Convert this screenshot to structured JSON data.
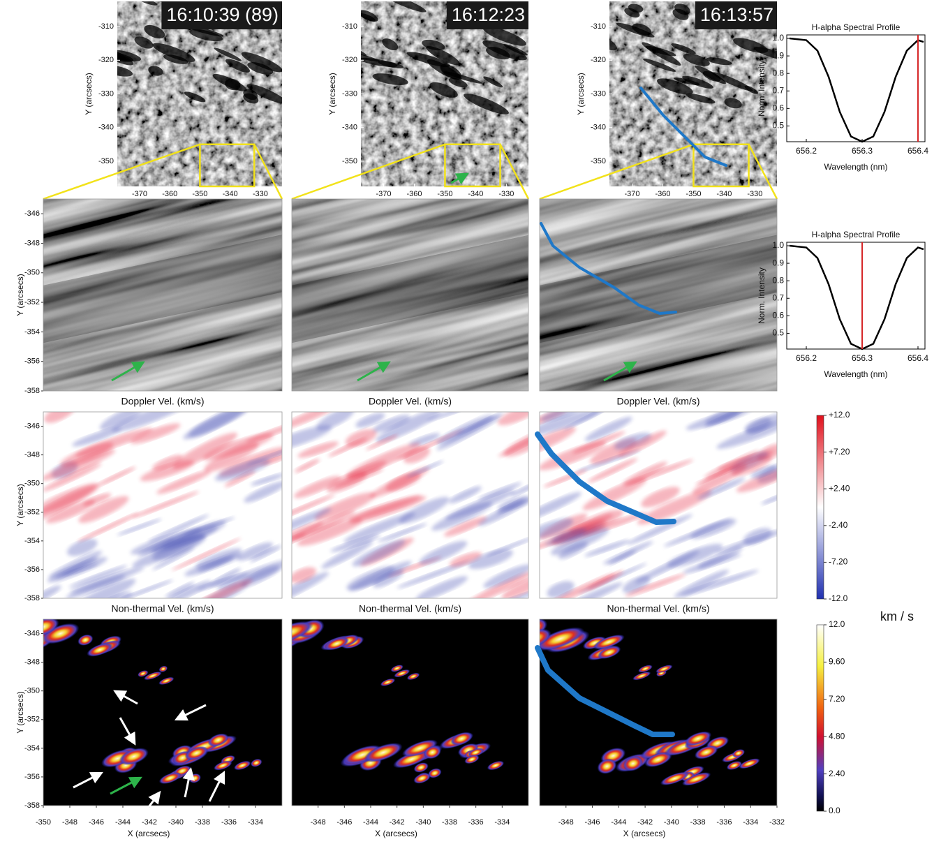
{
  "context_row": {
    "timestamps": [
      "16:10:39 (89)",
      "16:12:23",
      "16:13:57"
    ],
    "ylabel": "Y (arcsecs)",
    "xlim": [
      -377.4,
      -322.8
    ],
    "ylim": [
      -357.5,
      -302.5
    ],
    "xticks": [
      -370,
      -360,
      -350,
      -340,
      -330
    ],
    "yticks": [
      -310,
      -320,
      -330,
      -340,
      -350
    ]
  },
  "zoom_rows": {
    "ylabel": "Y (arcsecs)",
    "xlabel": "X (arcsecs)",
    "doppler_title": "Doppler Vel. (km/s)",
    "nonthermal_title": "Non-thermal Vel. (km/s)",
    "xlim": [
      -350,
      -332
    ],
    "ylim": [
      -358,
      -345
    ],
    "yticks": [
      -346,
      -348,
      -350,
      -352,
      -354,
      -356,
      -358
    ],
    "xticks": [
      [
        -350,
        -348,
        -346,
        -344,
        -342,
        -340,
        -338,
        -336,
        -334
      ],
      [
        -348,
        -346,
        -344,
        -342,
        -340,
        -338,
        -336,
        -334
      ],
      [
        -348,
        -346,
        -344,
        -342,
        -340,
        -338,
        -336,
        -334,
        -332
      ]
    ]
  },
  "doppler_colorbar": {
    "lim": [
      -12,
      12
    ],
    "ticks": [
      {
        "value": 12,
        "label": "+12.0"
      },
      {
        "value": 7.2,
        "label": "+7.20"
      },
      {
        "value": 2.4,
        "label": "+2.40"
      },
      {
        "value": -2.4,
        "label": "-2.40"
      },
      {
        "value": -7.2,
        "label": "-7.20"
      },
      {
        "value": -12,
        "label": "-12.0"
      }
    ]
  },
  "nonthermal_colorbar": {
    "lim": [
      0,
      12
    ],
    "ticks": [
      {
        "value": 12,
        "label": "12.0"
      },
      {
        "value": 9.6,
        "label": "9.60"
      },
      {
        "value": 7.2,
        "label": "7.20"
      },
      {
        "value": 4.8,
        "label": "4.80"
      },
      {
        "value": 2.4,
        "label": "2.40"
      },
      {
        "value": 0,
        "label": "0.0"
      }
    ],
    "unit": "km / s"
  },
  "chart_data": [
    {
      "type": "line",
      "title": "H-alpha Spectral Profile",
      "x_label": "Wavelength (nm)",
      "y_label": "Norm. Intensity",
      "x": [
        656.17,
        656.2,
        656.22,
        656.24,
        656.26,
        656.28,
        656.3,
        656.32,
        656.34,
        656.36,
        656.38,
        656.4,
        656.41
      ],
      "values": [
        1.0,
        0.99,
        0.93,
        0.78,
        0.58,
        0.44,
        0.41,
        0.44,
        0.58,
        0.78,
        0.93,
        0.99,
        0.98
      ],
      "color": "#000000",
      "marker_x": 656.4,
      "marker_color": "#d62728",
      "xlim": [
        656.165,
        656.4125
      ],
      "ylim": [
        0.41,
        1.02
      ],
      "xticks": [
        656.2,
        656.3,
        656.4
      ],
      "yticks": [
        0.5,
        0.6,
        0.7,
        0.8,
        0.9,
        {
          "value": 1,
          "label": "1.0"
        }
      ]
    },
    {
      "type": "line",
      "title": "H-alpha Spectral Profile",
      "x_label": "Wavelength (nm)",
      "y_label": "Norm. Intensity",
      "x": [
        656.17,
        656.2,
        656.22,
        656.24,
        656.26,
        656.28,
        656.3,
        656.32,
        656.34,
        656.36,
        656.38,
        656.4,
        656.41
      ],
      "values": [
        1.0,
        0.99,
        0.93,
        0.78,
        0.58,
        0.44,
        0.41,
        0.44,
        0.58,
        0.78,
        0.93,
        0.99,
        0.98
      ],
      "color": "#000000",
      "marker_x": 656.3,
      "marker_color": "#d62728",
      "xlim": [
        656.165,
        656.4125
      ],
      "ylim": [
        0.41,
        1.02
      ],
      "xticks": [
        656.2,
        656.3,
        656.4
      ],
      "yticks": [
        0.5,
        0.6,
        0.7,
        0.8,
        0.9,
        {
          "value": 1,
          "label": "1.0"
        }
      ]
    }
  ]
}
